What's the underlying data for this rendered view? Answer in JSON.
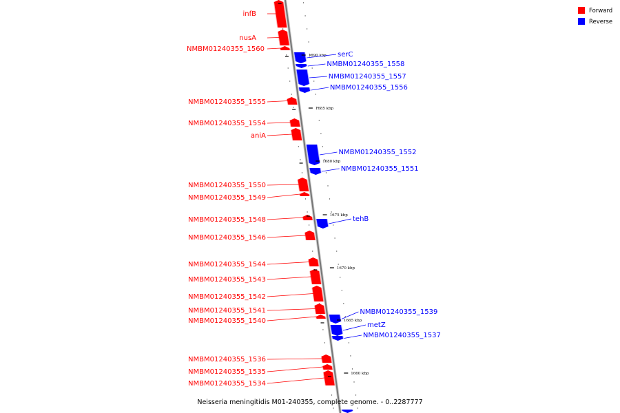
{
  "caption": "Neisseria meningitidis M01-240355, complete genome. - 0..2287777",
  "legend": [
    {
      "label": "Forward",
      "color": "#ff0000"
    },
    {
      "label": "Reverse",
      "color": "#0000ff"
    }
  ],
  "colors": {
    "forward": "#ff0000",
    "reverse": "#0000ff",
    "backbone": "#888888"
  },
  "ticks": [
    "1690 kbp",
    "1685 kbp",
    "1680 kbp",
    "1675 kbp",
    "1670 kbp",
    "1665 kbp",
    "1660 kbp"
  ],
  "forward_genes": [
    "infB",
    "nusA",
    "NMBM01240355_1560",
    "NMBM01240355_1555",
    "NMBM01240355_1554",
    "aniA",
    "NMBM01240355_1550",
    "NMBM01240355_1549",
    "NMBM01240355_1548",
    "NMBM01240355_1546",
    "NMBM01240355_1544",
    "NMBM01240355_1543",
    "NMBM01240355_1542",
    "NMBM01240355_1541",
    "NMBM01240355_1540",
    "NMBM01240355_1536",
    "NMBM01240355_1535",
    "NMBM01240355_1534"
  ],
  "reverse_genes": [
    "serC",
    "NMBM01240355_1558",
    "NMBM01240355_1557",
    "NMBM01240355_1556",
    "NMBM01240355_1552",
    "NMBM01240355_1551",
    "tehB",
    "NMBM01240355_1539",
    "metZ",
    "NMBM01240355_1537"
  ]
}
